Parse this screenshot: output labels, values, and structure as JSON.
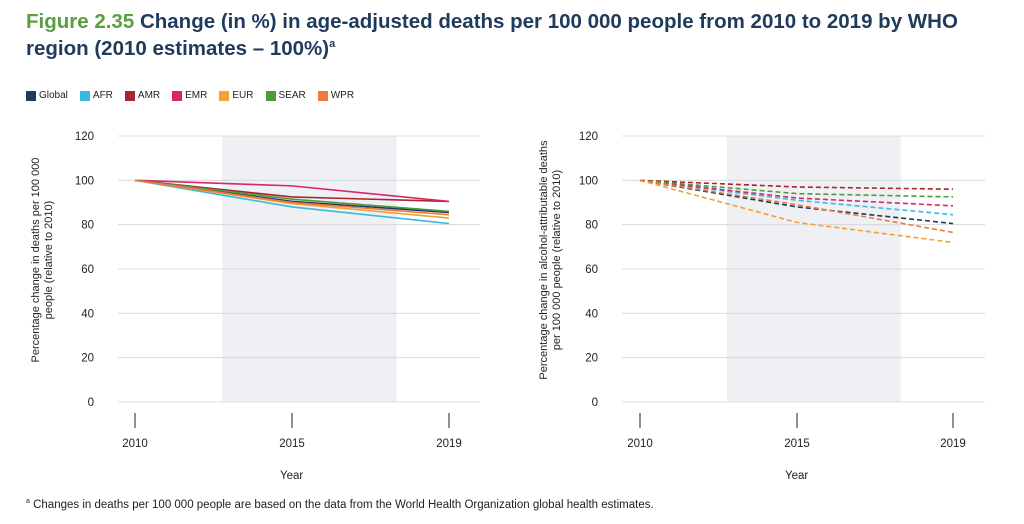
{
  "figure": {
    "label": "Figure 2.35",
    "title": "Change (in %) in age-adjusted deaths per 100 000 people from 2010 to 2019 by WHO region (2010 estimates – 100%)",
    "title_sup": "a"
  },
  "legend": [
    {
      "name": "Global",
      "color": "#1e3a5f"
    },
    {
      "name": "AFR",
      "color": "#3bb9e0"
    },
    {
      "name": "AMR",
      "color": "#a8262e"
    },
    {
      "name": "EMR",
      "color": "#d6266e"
    },
    {
      "name": "EUR",
      "color": "#f2a031"
    },
    {
      "name": "SEAR",
      "color": "#4f9a3d"
    },
    {
      "name": "WPR",
      "color": "#ee7a3e"
    }
  ],
  "footnote": {
    "marker": "a",
    "text": "Changes in deaths per 100 000 people are based on the data from the World Health Organization global health estimates."
  },
  "chart_data": [
    {
      "type": "line",
      "line_style": "solid",
      "x": [
        2010,
        2015,
        2019
      ],
      "xlabel": "Year",
      "ylabel": "Percentage change in deaths per 100 000 people (relative to 2010)",
      "ylim": [
        0,
        120
      ],
      "yticks": [
        0,
        20,
        40,
        60,
        80,
        100,
        120
      ],
      "shaded_range": [
        2012.5,
        2017.5
      ],
      "series": [
        {
          "name": "Global",
          "values": [
            100,
            90.5,
            85.5
          ]
        },
        {
          "name": "AFR",
          "values": [
            100,
            88,
            80.5
          ]
        },
        {
          "name": "AMR",
          "values": [
            100,
            92.5,
            90.5
          ]
        },
        {
          "name": "EMR",
          "values": [
            100,
            97.5,
            90.5
          ]
        },
        {
          "name": "EUR",
          "values": [
            100,
            89.5,
            83
          ]
        },
        {
          "name": "SEAR",
          "values": [
            100,
            91.5,
            86
          ]
        },
        {
          "name": "WPR",
          "values": [
            100,
            90,
            84.5
          ]
        }
      ]
    },
    {
      "type": "line",
      "line_style": "dashed",
      "x": [
        2010,
        2015,
        2019
      ],
      "xlabel": "Year",
      "ylabel": "Percentage change in alcohol-attributable deaths per 100 000 people (relative to 2010)",
      "ylim": [
        0,
        120
      ],
      "yticks": [
        0,
        20,
        40,
        60,
        80,
        100,
        120
      ],
      "shaded_range": [
        2012.5,
        2017.5
      ],
      "series": [
        {
          "name": "Global",
          "values": [
            100,
            88,
            80.5
          ]
        },
        {
          "name": "AFR",
          "values": [
            100,
            91,
            84.5
          ]
        },
        {
          "name": "AMR",
          "values": [
            100,
            97,
            96
          ]
        },
        {
          "name": "EMR",
          "values": [
            100,
            92,
            88.5
          ]
        },
        {
          "name": "EUR",
          "values": [
            100,
            81,
            72
          ]
        },
        {
          "name": "SEAR",
          "values": [
            100,
            94,
            92.5
          ]
        },
        {
          "name": "WPR",
          "values": [
            100,
            89,
            76.5
          ]
        }
      ]
    }
  ]
}
